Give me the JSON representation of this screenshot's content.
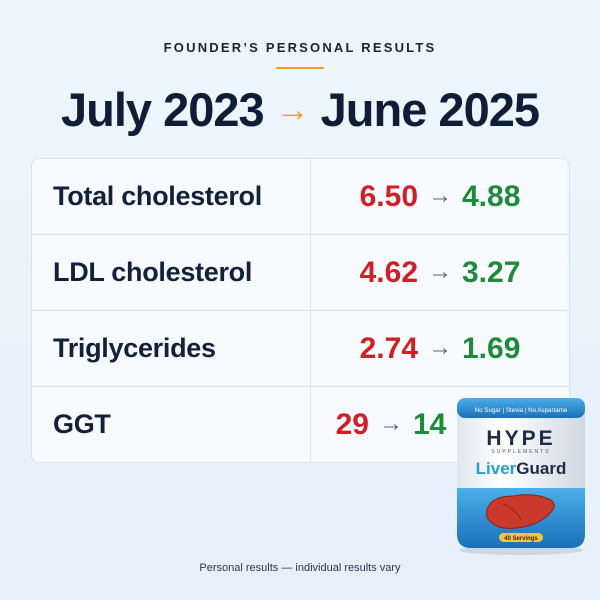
{
  "header": {
    "kicker": "FOUNDER’S PERSONAL RESULTS",
    "date_from": "July 2023",
    "arrow": "→",
    "date_to": "June 2025"
  },
  "results": [
    {
      "label": "Total cholesterol",
      "before": "6.50",
      "after": "4.88"
    },
    {
      "label": "LDL cholesterol",
      "before": "4.62",
      "after": "3.27"
    },
    {
      "label": "Triglycerides",
      "before": "2.74",
      "after": "1.69"
    },
    {
      "label": "GGT",
      "before": "29",
      "after": "14"
    }
  ],
  "value_arrow": "→",
  "product": {
    "top_band": "No Sugar | Stevia | No Aspartame",
    "brand": "HYPE",
    "brand_sub": "SUPPLEMENTS",
    "name_part1": "Liver",
    "name_part2": "Guard",
    "servings": "40 Servings"
  },
  "colors": {
    "accent": "#f59a23",
    "before": "#d21f26",
    "after": "#1f8a3c",
    "navy": "#0f1d36"
  },
  "footnote": "Personal results — individual results vary"
}
